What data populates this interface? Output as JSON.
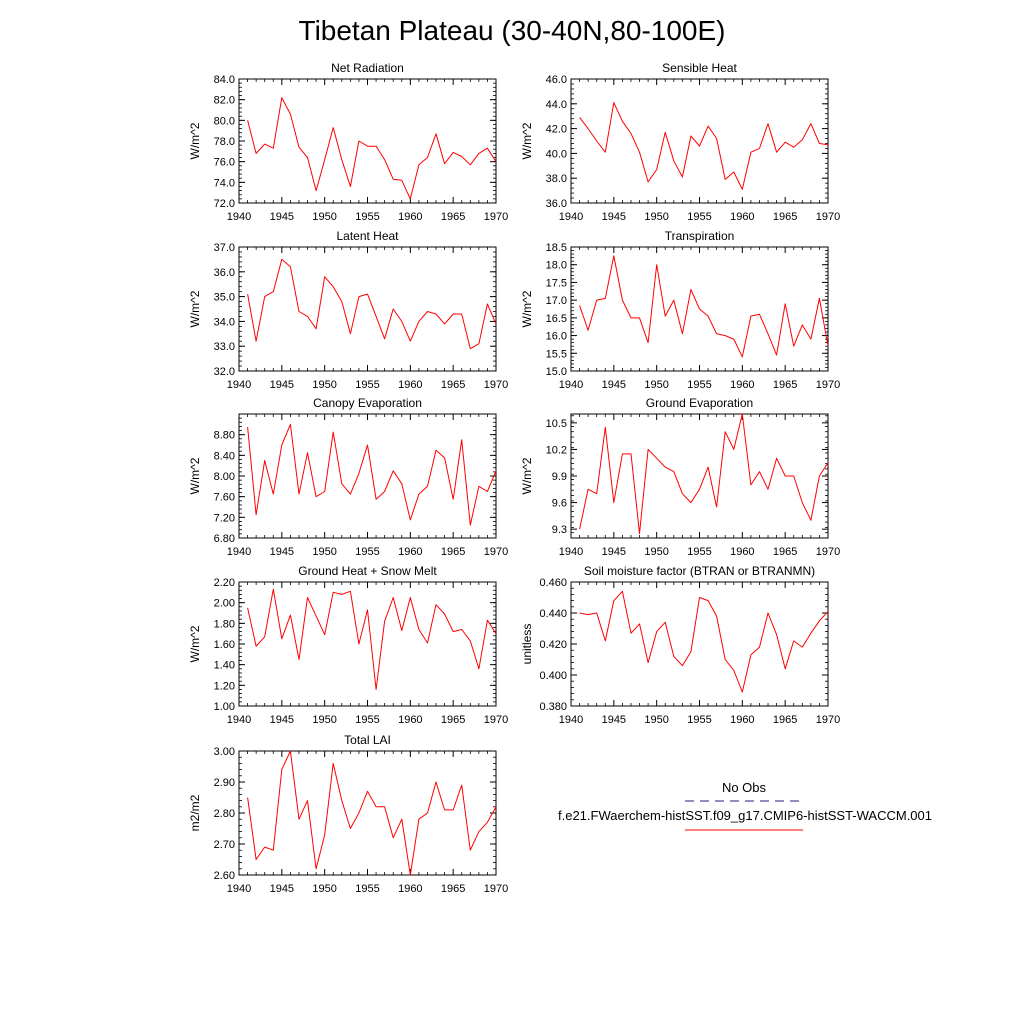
{
  "figure": {
    "title": "Tibetan Plateau (30-40N,80-100E)",
    "line_color": "#ff0000",
    "obs_line_color": "#4a4a9a"
  },
  "legend": {
    "obs_label": "No Obs",
    "model_label": "f.e21.FWaerchem-histSST.f09_g17.CMIP6-histSST-WACCM.001"
  },
  "chart_data": [
    {
      "type": "line",
      "title": "Net Radiation",
      "ylabel": "W/m^2",
      "xlim": [
        1940,
        1970
      ],
      "ylim": [
        72.0,
        84.0
      ],
      "xticks": [
        "1940",
        "1945",
        "1950",
        "1955",
        "1960",
        "1965",
        "1970"
      ],
      "yticks": [
        "72.0",
        "74.0",
        "76.0",
        "78.0",
        "80.0",
        "82.0",
        "84.0"
      ],
      "x": [
        1941,
        1942,
        1943,
        1944,
        1945,
        1946,
        1947,
        1948,
        1949,
        1950,
        1951,
        1952,
        1953,
        1954,
        1955,
        1956,
        1957,
        1958,
        1959,
        1960,
        1961,
        1962,
        1963,
        1964,
        1965,
        1966,
        1967,
        1968,
        1969,
        1970
      ],
      "values": [
        80.0,
        76.8,
        77.7,
        77.3,
        82.2,
        80.6,
        77.4,
        76.4,
        73.2,
        76.2,
        79.3,
        76.2,
        73.6,
        78.0,
        77.5,
        77.5,
        76.2,
        74.3,
        74.2,
        72.4,
        75.7,
        76.4,
        78.7,
        75.8,
        76.9,
        76.5,
        75.7,
        76.8,
        77.3,
        76.0
      ]
    },
    {
      "type": "line",
      "title": "Sensible Heat",
      "ylabel": "W/m^2",
      "xlim": [
        1940,
        1970
      ],
      "ylim": [
        36.0,
        46.0
      ],
      "xticks": [
        "1940",
        "1945",
        "1950",
        "1955",
        "1960",
        "1965",
        "1970"
      ],
      "yticks": [
        "36.0",
        "38.0",
        "40.0",
        "42.0",
        "44.0",
        "46.0"
      ],
      "x": [
        1941,
        1942,
        1943,
        1944,
        1945,
        1946,
        1947,
        1948,
        1949,
        1950,
        1951,
        1952,
        1953,
        1954,
        1955,
        1956,
        1957,
        1958,
        1959,
        1960,
        1961,
        1962,
        1963,
        1964,
        1965,
        1966,
        1967,
        1968,
        1969,
        1970
      ],
      "values": [
        42.9,
        42.0,
        41.0,
        40.1,
        44.1,
        42.6,
        41.6,
        40.1,
        37.7,
        38.7,
        41.7,
        39.4,
        38.1,
        41.4,
        40.6,
        42.2,
        41.2,
        37.9,
        38.5,
        37.1,
        40.1,
        40.4,
        42.4,
        40.1,
        40.9,
        40.5,
        41.1,
        42.4,
        40.8,
        40.7
      ]
    },
    {
      "type": "line",
      "title": "Latent Heat",
      "ylabel": "W/m^2",
      "xlim": [
        1940,
        1970
      ],
      "ylim": [
        32.0,
        37.0
      ],
      "xticks": [
        "1940",
        "1945",
        "1950",
        "1955",
        "1960",
        "1965",
        "1970"
      ],
      "yticks": [
        "32.0",
        "33.0",
        "34.0",
        "35.0",
        "36.0",
        "37.0"
      ],
      "x": [
        1941,
        1942,
        1943,
        1944,
        1945,
        1946,
        1947,
        1948,
        1949,
        1950,
        1951,
        1952,
        1953,
        1954,
        1955,
        1956,
        1957,
        1958,
        1959,
        1960,
        1961,
        1962,
        1963,
        1964,
        1965,
        1966,
        1967,
        1968,
        1969,
        1970
      ],
      "values": [
        35.1,
        33.2,
        35.0,
        35.2,
        36.5,
        36.2,
        34.4,
        34.2,
        33.7,
        35.8,
        35.4,
        34.8,
        33.5,
        35.0,
        35.1,
        34.2,
        33.3,
        34.5,
        34.0,
        33.2,
        34.0,
        34.4,
        34.3,
        33.9,
        34.3,
        34.3,
        32.9,
        33.1,
        34.7,
        33.9
      ]
    },
    {
      "type": "line",
      "title": "Transpiration",
      "ylabel": "W/m^2",
      "xlim": [
        1940,
        1970
      ],
      "ylim": [
        15.0,
        18.5
      ],
      "xticks": [
        "1940",
        "1945",
        "1950",
        "1955",
        "1960",
        "1965",
        "1970"
      ],
      "yticks": [
        "15.0",
        "15.5",
        "16.0",
        "16.5",
        "17.0",
        "17.5",
        "18.0",
        "18.5"
      ],
      "x": [
        1941,
        1942,
        1943,
        1944,
        1945,
        1946,
        1947,
        1948,
        1949,
        1950,
        1951,
        1952,
        1953,
        1954,
        1955,
        1956,
        1957,
        1958,
        1959,
        1960,
        1961,
        1962,
        1963,
        1964,
        1965,
        1966,
        1967,
        1968,
        1969,
        1970
      ],
      "values": [
        16.85,
        16.15,
        17.0,
        17.05,
        18.25,
        17.0,
        16.5,
        16.5,
        15.8,
        18.0,
        16.55,
        17.0,
        16.05,
        17.3,
        16.75,
        16.55,
        16.05,
        16.0,
        15.9,
        15.4,
        16.55,
        16.6,
        16.05,
        15.45,
        16.9,
        15.7,
        16.3,
        15.9,
        17.05,
        15.7
      ]
    },
    {
      "type": "line",
      "title": "Canopy Evaporation",
      "ylabel": "W/m^2",
      "xlim": [
        1940,
        1970
      ],
      "ylim": [
        6.8,
        9.2
      ],
      "xticks": [
        "1940",
        "1945",
        "1950",
        "1955",
        "1960",
        "1965",
        "1970"
      ],
      "yticks": [
        "6.80",
        "7.20",
        "7.60",
        "8.00",
        "8.40",
        "8.80"
      ],
      "x": [
        1941,
        1942,
        1943,
        1944,
        1945,
        1946,
        1947,
        1948,
        1949,
        1950,
        1951,
        1952,
        1953,
        1954,
        1955,
        1956,
        1957,
        1958,
        1959,
        1960,
        1961,
        1962,
        1963,
        1964,
        1965,
        1966,
        1967,
        1968,
        1969,
        1970
      ],
      "values": [
        8.95,
        7.25,
        8.3,
        7.65,
        8.6,
        9.0,
        7.65,
        8.45,
        7.6,
        7.7,
        8.85,
        7.85,
        7.65,
        8.05,
        8.6,
        7.55,
        7.7,
        8.1,
        7.85,
        7.15,
        7.65,
        7.8,
        8.5,
        8.35,
        7.55,
        8.7,
        7.05,
        7.8,
        7.7,
        8.1
      ]
    },
    {
      "type": "line",
      "title": "Ground Evaporation",
      "ylabel": "W/m^2",
      "xlim": [
        1940,
        1970
      ],
      "ylim": [
        9.2,
        10.6
      ],
      "xticks": [
        "1940",
        "1945",
        "1950",
        "1955",
        "1960",
        "1965",
        "1970"
      ],
      "yticks": [
        "9.3",
        "9.6",
        "9.9",
        "10.2",
        "10.5"
      ],
      "x": [
        1941,
        1942,
        1943,
        1944,
        1945,
        1946,
        1947,
        1948,
        1949,
        1950,
        1951,
        1952,
        1953,
        1954,
        1955,
        1956,
        1957,
        1958,
        1959,
        1960,
        1961,
        1962,
        1963,
        1964,
        1965,
        1966,
        1967,
        1968,
        1969,
        1970
      ],
      "values": [
        9.3,
        9.75,
        9.7,
        10.45,
        9.6,
        10.15,
        10.15,
        9.25,
        10.2,
        10.1,
        10.0,
        9.95,
        9.7,
        9.6,
        9.75,
        10.0,
        9.55,
        10.4,
        10.2,
        10.6,
        9.8,
        9.95,
        9.75,
        10.1,
        9.9,
        9.9,
        9.6,
        9.4,
        9.9,
        10.05
      ]
    },
    {
      "type": "line",
      "title": "Ground Heat + Snow Melt",
      "ylabel": "W/m^2",
      "xlim": [
        1940,
        1970
      ],
      "ylim": [
        1.0,
        2.2
      ],
      "xticks": [
        "1940",
        "1945",
        "1950",
        "1955",
        "1960",
        "1965",
        "1970"
      ],
      "yticks": [
        "1.00",
        "1.20",
        "1.40",
        "1.60",
        "1.80",
        "2.00",
        "2.20"
      ],
      "x": [
        1941,
        1942,
        1943,
        1944,
        1945,
        1946,
        1947,
        1948,
        1949,
        1950,
        1951,
        1952,
        1953,
        1954,
        1955,
        1956,
        1957,
        1958,
        1959,
        1960,
        1961,
        1962,
        1963,
        1964,
        1965,
        1966,
        1967,
        1968,
        1969,
        1970
      ],
      "values": [
        1.95,
        1.58,
        1.67,
        2.13,
        1.65,
        1.88,
        1.45,
        2.05,
        1.87,
        1.69,
        2.1,
        2.08,
        2.11,
        1.6,
        1.93,
        1.16,
        1.82,
        2.05,
        1.73,
        2.05,
        1.74,
        1.61,
        1.98,
        1.89,
        1.72,
        1.74,
        1.63,
        1.36,
        1.83,
        1.7
      ]
    },
    {
      "type": "line",
      "title": "Soil moisture factor (BTRAN or BTRANMN)",
      "ylabel": "unitless",
      "xlim": [
        1940,
        1970
      ],
      "ylim": [
        0.38,
        0.46
      ],
      "xticks": [
        "1940",
        "1945",
        "1950",
        "1955",
        "1960",
        "1965",
        "1970"
      ],
      "yticks": [
        "0.380",
        "0.400",
        "0.420",
        "0.440",
        "0.460"
      ],
      "x": [
        1941,
        1942,
        1943,
        1944,
        1945,
        1946,
        1947,
        1948,
        1949,
        1950,
        1951,
        1952,
        1953,
        1954,
        1955,
        1956,
        1957,
        1958,
        1959,
        1960,
        1961,
        1962,
        1963,
        1964,
        1965,
        1966,
        1967,
        1968,
        1969,
        1970
      ],
      "values": [
        0.44,
        0.439,
        0.44,
        0.422,
        0.448,
        0.454,
        0.427,
        0.433,
        0.408,
        0.428,
        0.434,
        0.412,
        0.406,
        0.415,
        0.45,
        0.448,
        0.438,
        0.41,
        0.403,
        0.389,
        0.413,
        0.418,
        0.44,
        0.426,
        0.404,
        0.422,
        0.418,
        0.427,
        0.435,
        0.441
      ]
    },
    {
      "type": "line",
      "title": "Total LAI",
      "ylabel": "m2/m2",
      "xlim": [
        1940,
        1970
      ],
      "ylim": [
        2.6,
        3.0
      ],
      "xticks": [
        "1940",
        "1945",
        "1950",
        "1955",
        "1960",
        "1965",
        "1970"
      ],
      "yticks": [
        "2.60",
        "2.70",
        "2.80",
        "2.90",
        "3.00"
      ],
      "x": [
        1941,
        1942,
        1943,
        1944,
        1945,
        1946,
        1947,
        1948,
        1949,
        1950,
        1951,
        1952,
        1953,
        1954,
        1955,
        1956,
        1957,
        1958,
        1959,
        1960,
        1961,
        1962,
        1963,
        1964,
        1965,
        1966,
        1967,
        1968,
        1969,
        1970
      ],
      "values": [
        2.85,
        2.65,
        2.69,
        2.68,
        2.94,
        3.0,
        2.78,
        2.84,
        2.62,
        2.73,
        2.96,
        2.84,
        2.75,
        2.8,
        2.87,
        2.82,
        2.82,
        2.72,
        2.78,
        2.6,
        2.78,
        2.8,
        2.9,
        2.81,
        2.81,
        2.89,
        2.68,
        2.74,
        2.77,
        2.82
      ]
    }
  ]
}
